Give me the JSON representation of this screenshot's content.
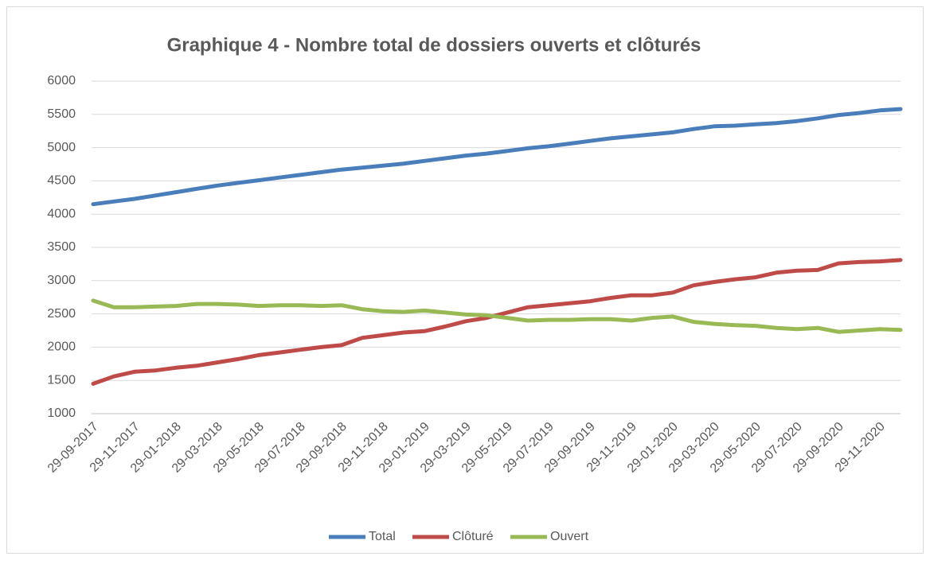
{
  "chart_data": {
    "type": "line",
    "title": "Graphique 4 - Nombre total de dossiers ouverts et clôturés",
    "categories": [
      "29-09-2017",
      null,
      "29-11-2017",
      null,
      "29-01-2018",
      null,
      "29-03-2018",
      null,
      "29-05-2018",
      null,
      "29-07-2018",
      null,
      "29-09-2018",
      null,
      "29-11-2018",
      null,
      "29-01-2019",
      null,
      "29-03-2019",
      null,
      "29-05-2019",
      null,
      "29-07-2019",
      null,
      "29-09-2019",
      null,
      "29-11-2019",
      null,
      "29-01-2020",
      null,
      "29-03-2020",
      null,
      "29-05-2020",
      null,
      "29-07-2020",
      null,
      "29-09-2020",
      null,
      "29-11-2020",
      null
    ],
    "series": [
      {
        "name": "Total",
        "color": "#4a7ebb",
        "values": [
          4150,
          4190,
          4230,
          4280,
          4330,
          4380,
          4430,
          4470,
          4510,
          4550,
          4590,
          4630,
          4670,
          4700,
          4730,
          4760,
          4800,
          4840,
          4880,
          4910,
          4950,
          4990,
          5020,
          5060,
          5100,
          5140,
          5170,
          5200,
          5230,
          5280,
          5320,
          5330,
          5350,
          5370,
          5400,
          5440,
          5490,
          5520,
          5560,
          5580
        ]
      },
      {
        "name": "Clôturé",
        "color": "#be4b48",
        "values": [
          1450,
          1560,
          1630,
          1650,
          1690,
          1720,
          1770,
          1820,
          1880,
          1920,
          1960,
          2000,
          2030,
          2140,
          2180,
          2220,
          2240,
          2310,
          2390,
          2440,
          2520,
          2600,
          2630,
          2660,
          2690,
          2740,
          2780,
          2780,
          2820,
          2930,
          2980,
          3020,
          3050,
          3120,
          3150,
          3160,
          3260,
          3280,
          3290,
          3310
        ]
      },
      {
        "name": "Ouvert",
        "color": "#98b954",
        "values": [
          2700,
          2600,
          2600,
          2610,
          2620,
          2650,
          2650,
          2640,
          2620,
          2630,
          2630,
          2620,
          2630,
          2570,
          2540,
          2530,
          2550,
          2520,
          2490,
          2480,
          2440,
          2400,
          2410,
          2410,
          2420,
          2420,
          2400,
          2440,
          2460,
          2380,
          2350,
          2330,
          2320,
          2290,
          2270,
          2290,
          2230,
          2250,
          2270,
          2260
        ]
      }
    ],
    "ylim": [
      1000,
      6000
    ],
    "yticks": [
      1000,
      1500,
      2000,
      2500,
      3000,
      3500,
      4000,
      4500,
      5000,
      5500,
      6000
    ],
    "grid": true,
    "legend": "bottom"
  }
}
